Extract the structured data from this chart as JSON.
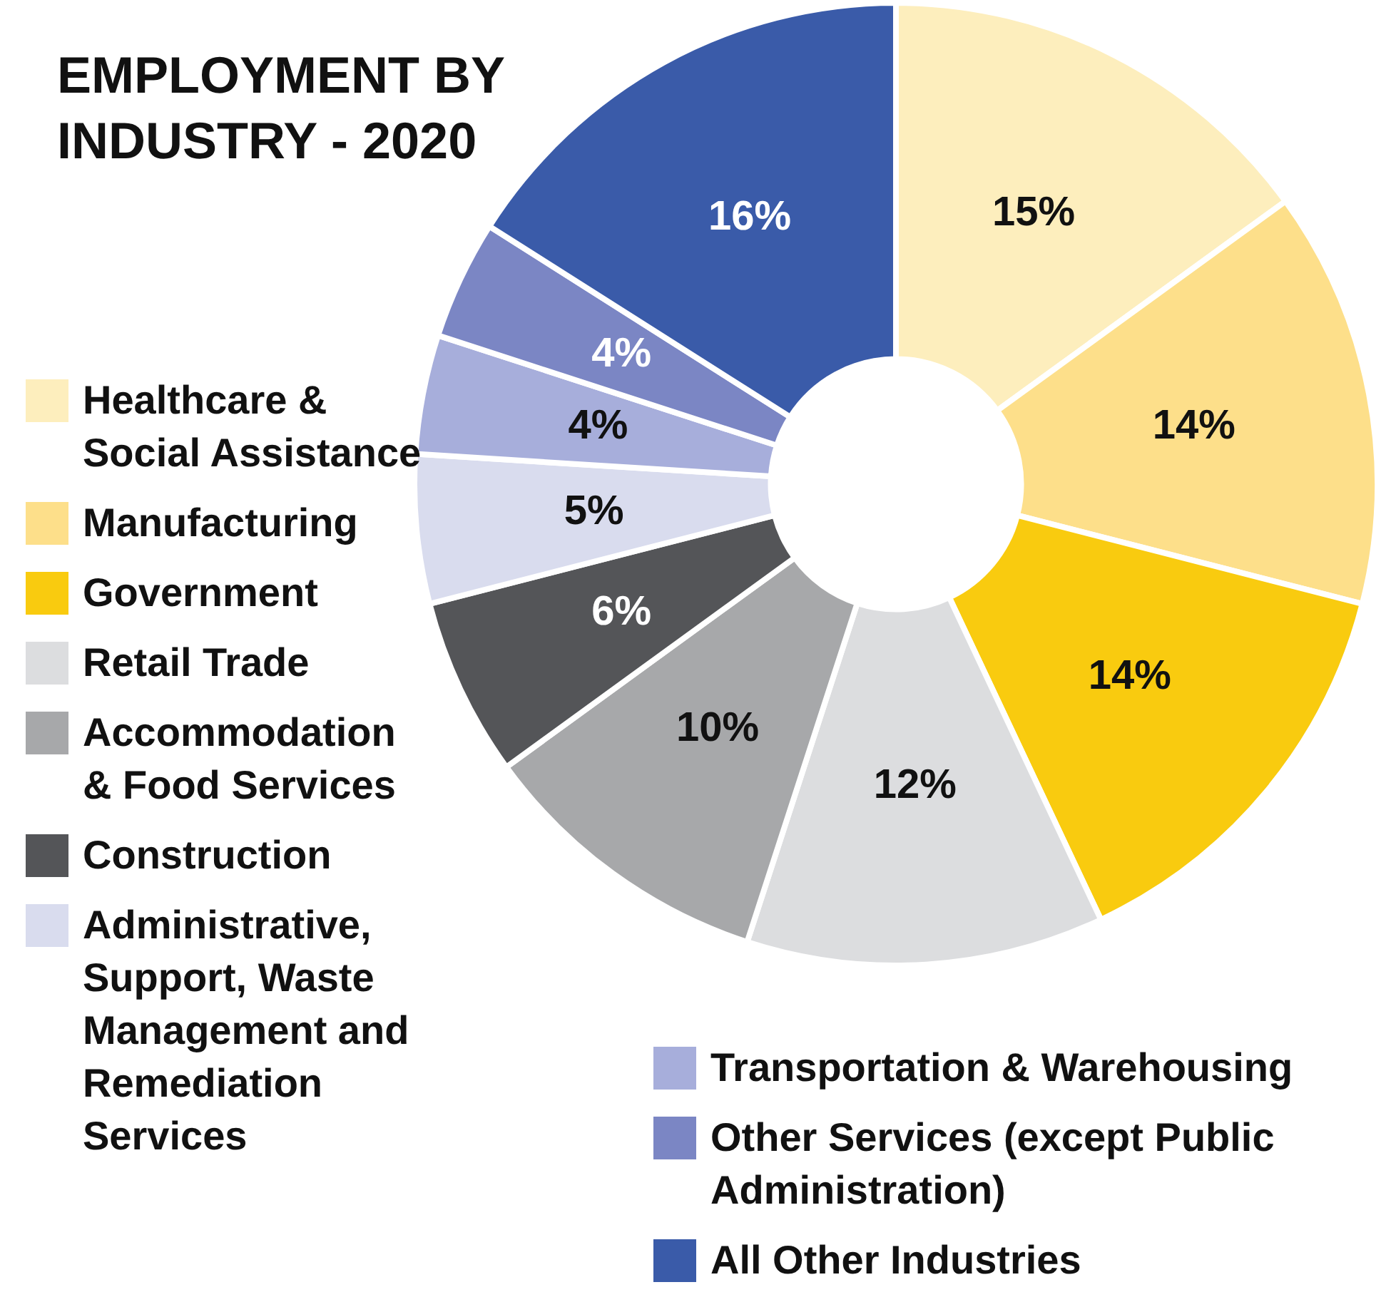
{
  "chart_data": {
    "type": "donut",
    "title": "EMPLOYMENT BY INDUSTRY - 2020",
    "categories": [
      "Healthcare & Social Assistance",
      "Manufacturing",
      "Government",
      "Retail Trade",
      "Accommodation & Food Services",
      "Construction",
      "Administrative, Support, Waste Management and Remediation Services",
      "Transportation & Warehousing",
      "Other Services (except Public Administration)",
      "All Other Industries"
    ],
    "values": [
      15,
      14,
      14,
      12,
      10,
      6,
      5,
      4,
      4,
      16
    ],
    "value_labels": [
      "15%",
      "14%",
      "14%",
      "12%",
      "10%",
      "6%",
      "5%",
      "4%",
      "4%",
      "16%"
    ],
    "colors": [
      "#fdeebd",
      "#fddf8a",
      "#f9cb0f",
      "#dcdddf",
      "#a7a8aa",
      "#545558",
      "#d9dcee",
      "#a7aedb",
      "#7b86c4",
      "#3a5ba9"
    ],
    "legend": "left"
  }
}
